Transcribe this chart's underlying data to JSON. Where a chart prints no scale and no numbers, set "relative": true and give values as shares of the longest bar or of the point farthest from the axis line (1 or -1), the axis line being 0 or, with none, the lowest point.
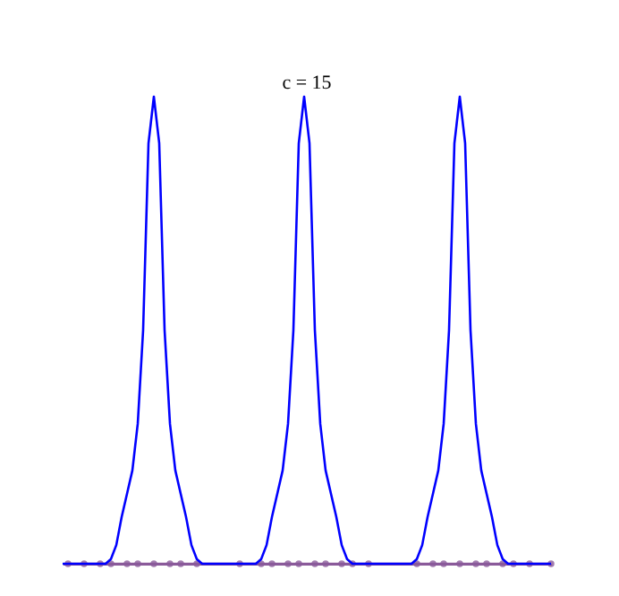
{
  "chart_data": {
    "type": "line",
    "title": "c = 15",
    "relative": true,
    "categories": [
      null,
      null,
      null,
      null,
      null,
      null,
      null,
      null,
      null,
      null,
      null,
      null,
      null,
      null,
      null,
      null,
      null,
      null,
      null,
      null,
      null,
      null,
      null,
      null,
      null,
      null,
      null,
      null,
      null,
      null,
      null,
      null,
      null,
      null,
      null,
      null,
      null,
      null,
      null,
      null,
      null,
      null,
      null,
      null,
      null,
      null,
      null,
      null,
      null,
      null,
      null,
      null,
      null,
      null,
      null,
      null,
      null,
      null,
      null,
      null,
      null,
      null,
      null,
      null,
      null,
      null,
      null,
      null,
      null,
      null,
      null,
      null,
      null,
      null,
      null,
      null,
      null,
      null,
      null,
      null,
      null,
      null,
      null,
      null,
      null,
      null,
      null,
      null,
      null,
      null,
      null,
      null
    ],
    "series": [
      {
        "color": "#0000ff",
        "values": [
          0,
          0,
          0,
          0,
          0,
          0,
          0,
          0,
          0,
          0.01,
          0.04,
          0.1,
          0.15,
          0.2,
          0.3,
          0.5,
          0.9,
          1,
          0.9,
          0.5,
          0.3,
          0.2,
          0.15,
          0.1,
          0.04,
          0.01,
          0,
          0,
          0,
          0,
          0,
          0,
          0,
          0,
          0,
          0,
          0,
          0.01,
          0.04,
          0.1,
          0.15,
          0.2,
          0.3,
          0.5,
          0.9,
          1,
          0.9,
          0.5,
          0.3,
          0.2,
          0.15,
          0.1,
          0.04,
          0.01,
          0,
          0,
          0,
          0,
          0,
          0,
          0,
          0,
          0,
          0,
          0,
          0,
          0.01,
          0.04,
          0.1,
          0.15,
          0.2,
          0.3,
          0.5,
          0.9,
          1,
          0.9,
          0.5,
          0.3,
          0.2,
          0.15,
          0.1,
          0.04,
          0.01,
          0,
          0,
          0,
          0,
          0,
          0,
          0,
          0,
          0
        ]
      },
      {
        "type": "line",
        "color": "#8a5a9a",
        "marker": "circle",
        "values": [
          null,
          0,
          null,
          null,
          0,
          null,
          null,
          0,
          null,
          0,
          null,
          null,
          0,
          null,
          0,
          null,
          null,
          0,
          null,
          null,
          0,
          null,
          0,
          null,
          null,
          0,
          null,
          null,
          null,
          null,
          null,
          null,
          null,
          0,
          null,
          null,
          null,
          0,
          null,
          0,
          null,
          null,
          0,
          null,
          0,
          null,
          null,
          0,
          null,
          0,
          null,
          null,
          0,
          null,
          0,
          null,
          null,
          0,
          null,
          null,
          null,
          null,
          null,
          null,
          null,
          null,
          0,
          null,
          null,
          0,
          null,
          0,
          null,
          null,
          0,
          null,
          null,
          0,
          null,
          0,
          null,
          null,
          0,
          null,
          0,
          null,
          null,
          0,
          null,
          null,
          null,
          0
        ]
      }
    ]
  }
}
